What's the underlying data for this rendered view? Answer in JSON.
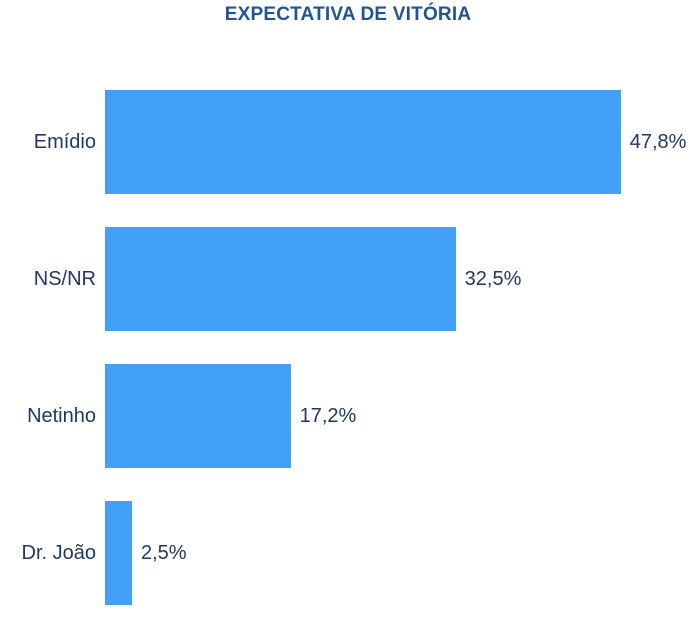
{
  "title": "EXPECTATIVA DE VITÓRIA",
  "colors": {
    "bar": "#42A1F7",
    "title_text": "#1F5597",
    "label_text": "#203864",
    "background": "#FFFFFF"
  },
  "chart_data": {
    "type": "bar",
    "orientation": "horizontal",
    "title": "EXPECTATIVA DE VITÓRIA",
    "categories": [
      "Emídio",
      "NS/NR",
      "Netinho",
      "Dr. João"
    ],
    "values": [
      47.8,
      32.5,
      17.2,
      2.5
    ],
    "value_labels": [
      "47,8%",
      "32,5%",
      "17,2%",
      "2,5%"
    ],
    "xlabel": "",
    "ylabel": "",
    "xlim": [
      0,
      55
    ],
    "grid": false,
    "legend": false,
    "data_labels_position": "outside-end"
  }
}
